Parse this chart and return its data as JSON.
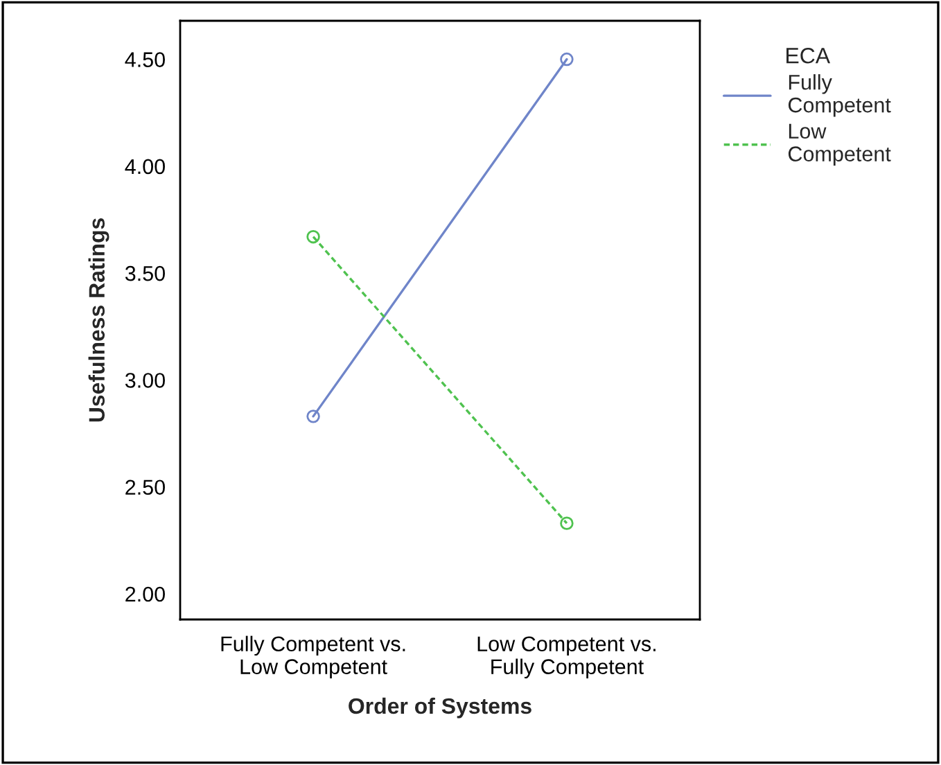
{
  "chart_data": {
    "type": "line",
    "xlabel": "Order of Systems",
    "ylabel": "Usefulness Ratings",
    "legend_title": "ECA",
    "categories": [
      "Fully Competent vs.\nLow Competent",
      "Low Competent vs.\nFully Competent"
    ],
    "series": [
      {
        "name": "Fully\nCompetent",
        "color": "#6f85c9",
        "values": [
          2.83,
          4.5
        ],
        "line_style": "solid"
      },
      {
        "name": "Low\nCompetent",
        "color": "#4fc24f",
        "values": [
          3.67,
          2.33
        ],
        "line_style": "dashed"
      }
    ],
    "ylim": [
      1.88,
      4.68
    ],
    "yticks": [
      {
        "value": 2.0,
        "label": "2.00"
      },
      {
        "value": 2.5,
        "label": "2.50"
      },
      {
        "value": 3.0,
        "label": "3.00"
      },
      {
        "value": 3.5,
        "label": "3.50"
      },
      {
        "value": 4.0,
        "label": "4.00"
      },
      {
        "value": 4.5,
        "label": "4.50"
      }
    ],
    "marker": "circle",
    "legend": "right",
    "grid": false
  }
}
